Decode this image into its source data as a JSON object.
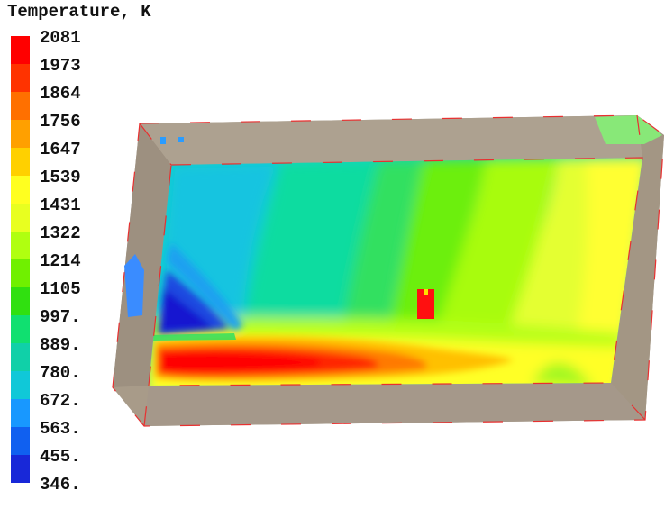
{
  "chart_data": {
    "type": "heatmap",
    "title": "Temperature, K",
    "colorbar": {
      "position": "left",
      "min": 346,
      "max": 2081,
      "tick_labels": [
        "2081",
        "1973",
        "1864",
        "1756",
        "1647",
        "1539",
        "1431",
        "1322",
        "1214",
        "1105",
        "997.",
        "889.",
        "780.",
        "672.",
        "563.",
        "455.",
        "346."
      ],
      "colors": [
        "#ff0000",
        "#ff3300",
        "#ff7000",
        "#ffa000",
        "#ffd000",
        "#ffff20",
        "#e8ff20",
        "#b0ff10",
        "#70f000",
        "#30e010",
        "#10e070",
        "#10d0a8",
        "#10c8d8",
        "#1898ff",
        "#1060f0",
        "#1828d8",
        "#0000ff"
      ]
    },
    "hot_spot_temperature": 2081,
    "cold_spot_temperature": 346
  }
}
